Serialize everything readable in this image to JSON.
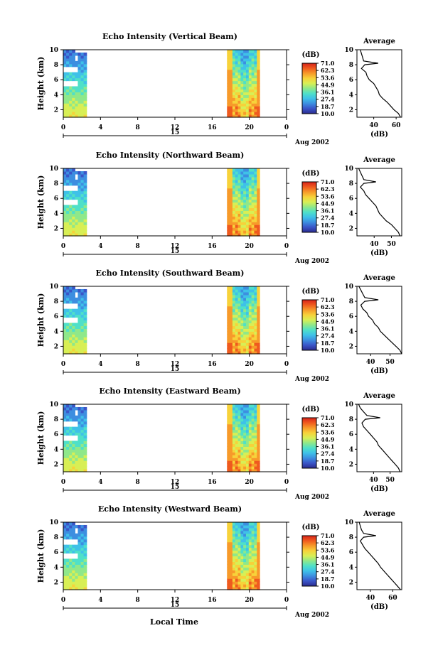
{
  "figure": {
    "xlabel": "Local Time",
    "date_label": "Aug 2002",
    "date_marker": "15",
    "xticks": [
      "0",
      "4",
      "8",
      "12",
      "16",
      "20",
      "0"
    ]
  },
  "colorbar": {
    "unit": "(dB)",
    "ticks": [
      "71.0",
      "62.3",
      "53.6",
      "44.9",
      "36.1",
      "27.4",
      "18.7",
      "10.0"
    ],
    "colors": [
      "#2b2b8f",
      "#3a55c8",
      "#3d8ee0",
      "#3fc1e8",
      "#4fe0c8",
      "#8fe88a",
      "#d8ef55",
      "#f7d23a",
      "#f79a2a",
      "#ef5a1e",
      "#d8231a"
    ]
  },
  "chart_data": [
    {
      "type": "heatmap",
      "title": "Echo Intensity (Vertical Beam)",
      "xlabel": "Local Time",
      "ylabel": "Height (km)",
      "xlim": [
        0,
        24
      ],
      "ylim": [
        1,
        10
      ],
      "yticks": [
        "2",
        "4",
        "6",
        "8",
        "10"
      ],
      "data_segments": [
        [
          0,
          2.5
        ],
        [
          17.6,
          21.1
        ]
      ],
      "value_range_db": [
        10.0,
        71.0
      ],
      "profile": {
        "title": "Average",
        "xlabel": "(dB)",
        "xticks": [
          "40",
          "60"
        ],
        "xlim": [
          25,
          65
        ],
        "height_km": [
          10,
          9.5,
          9,
          8.5,
          8.2,
          8,
          7.5,
          7,
          6.5,
          6,
          5.5,
          5,
          4.5,
          4,
          3.5,
          3,
          2.5,
          2,
          1.5,
          1
        ],
        "value_db": [
          28,
          29,
          30,
          31,
          44,
          32,
          29,
          33,
          34,
          36,
          40,
          42,
          44,
          45,
          48,
          52,
          55,
          58,
          62,
          64
        ]
      }
    },
    {
      "type": "heatmap",
      "title": "Echo Intensity (Northward Beam)",
      "xlabel": "Local Time",
      "ylabel": "Height (km)",
      "xlim": [
        0,
        24
      ],
      "ylim": [
        1,
        10
      ],
      "yticks": [
        "2",
        "4",
        "6",
        "8",
        "10"
      ],
      "data_segments": [
        [
          0,
          2.5
        ],
        [
          17.6,
          21.1
        ]
      ],
      "value_range_db": [
        10.0,
        71.0
      ],
      "profile": {
        "title": "Average",
        "xlabel": "(dB)",
        "xticks": [
          "40",
          "50"
        ],
        "xlim": [
          30,
          56
        ],
        "height_km": [
          10,
          9.5,
          9,
          8.5,
          8.2,
          8,
          7.5,
          7,
          6.5,
          6,
          5.5,
          5,
          4.5,
          4,
          3.5,
          3,
          2.5,
          2,
          1.5,
          1
        ],
        "value_db": [
          31,
          32,
          33,
          34,
          41,
          34,
          32,
          34,
          35,
          37,
          39,
          41,
          42,
          43,
          45,
          47,
          50,
          52,
          54,
          55
        ]
      }
    },
    {
      "type": "heatmap",
      "title": "Echo Intensity (Southward Beam)",
      "xlabel": "Local Time",
      "ylabel": "Height (km)",
      "xlim": [
        0,
        24
      ],
      "ylim": [
        1,
        10
      ],
      "yticks": [
        "2",
        "4",
        "6",
        "8",
        "10"
      ],
      "data_segments": [
        [
          0,
          2.5
        ],
        [
          17.6,
          21.1
        ]
      ],
      "value_range_db": [
        10.0,
        71.0
      ],
      "profile": {
        "title": "Average",
        "xlabel": "(dB)",
        "xticks": [
          "40",
          "50"
        ],
        "xlim": [
          33,
          56
        ],
        "height_km": [
          10,
          9.5,
          9,
          8.5,
          8.2,
          8,
          7.5,
          7,
          6.5,
          6,
          5.5,
          5,
          4.5,
          4,
          3.5,
          3,
          2.5,
          2,
          1.5,
          1
        ],
        "value_db": [
          34,
          35,
          36,
          37,
          44,
          37,
          35,
          36,
          38,
          39,
          41,
          42,
          44,
          45,
          47,
          49,
          51,
          53,
          55,
          56
        ]
      }
    },
    {
      "type": "heatmap",
      "title": "Echo Intensity (Eastward Beam)",
      "xlabel": "Local Time",
      "ylabel": "Height (km)",
      "xlim": [
        0,
        24
      ],
      "ylim": [
        1,
        10
      ],
      "yticks": [
        "2",
        "4",
        "6",
        "8",
        "10"
      ],
      "data_segments": [
        [
          0,
          2.5
        ],
        [
          17.6,
          21.1
        ]
      ],
      "value_range_db": [
        10.0,
        71.0
      ],
      "profile": {
        "title": "Average",
        "xlabel": "(dB)",
        "xticks": [
          "40",
          "50"
        ],
        "xlim": [
          30,
          57
        ],
        "height_km": [
          10,
          9.5,
          9,
          8.5,
          8.2,
          8,
          7.5,
          7,
          6.5,
          6,
          5.5,
          5,
          4.5,
          4,
          3.5,
          3,
          2.5,
          2,
          1.5,
          1
        ],
        "value_db": [
          31,
          32,
          34,
          36,
          44,
          35,
          33,
          34,
          36,
          38,
          40,
          42,
          43,
          45,
          47,
          49,
          51,
          53,
          55,
          56
        ]
      }
    },
    {
      "type": "heatmap",
      "title": "Echo Intensity (Westward Beam)",
      "xlabel": "Local Time",
      "ylabel": "Height (km)",
      "xlim": [
        0,
        24
      ],
      "ylim": [
        1,
        10
      ],
      "yticks": [
        "2",
        "4",
        "6",
        "8",
        "10"
      ],
      "data_segments": [
        [
          0,
          2.5
        ],
        [
          17.6,
          21.1
        ]
      ],
      "value_range_db": [
        10.0,
        71.0
      ],
      "profile": {
        "title": "Average",
        "xlabel": "(dB)",
        "xticks": [
          "40",
          "60"
        ],
        "xlim": [
          28,
          68
        ],
        "height_km": [
          10,
          9.5,
          9,
          8.5,
          8.2,
          8,
          7.5,
          7,
          6.5,
          6,
          5.5,
          5,
          4.5,
          4,
          3.5,
          3,
          2.5,
          2,
          1.5,
          1
        ],
        "value_db": [
          30,
          31,
          32,
          34,
          45,
          34,
          31,
          33,
          35,
          38,
          41,
          44,
          47,
          49,
          52,
          55,
          58,
          61,
          64,
          67
        ]
      }
    }
  ]
}
